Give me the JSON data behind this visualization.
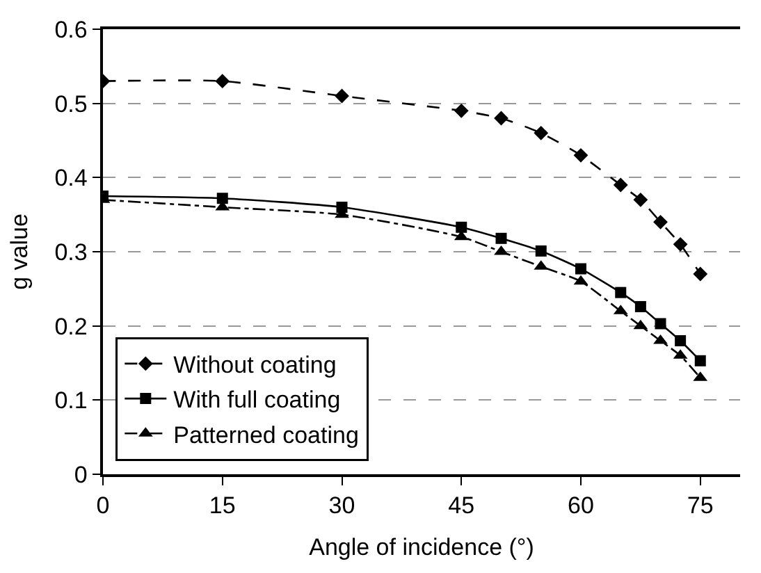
{
  "chart_data": {
    "type": "line",
    "xlabel": "Angle of incidence (°)",
    "ylabel": "g value",
    "x": [
      0,
      15,
      30,
      45,
      50,
      55,
      60,
      65,
      67.5,
      70,
      72.5,
      75
    ],
    "xlim": [
      0,
      80
    ],
    "xticks": [
      0,
      15,
      30,
      45,
      60,
      75
    ],
    "ylim": [
      0,
      0.6
    ],
    "yticks": [
      0,
      0.1,
      0.2,
      0.3,
      0.4,
      0.5,
      0.6
    ],
    "grid": "y",
    "legend": "bottom left",
    "series": [
      {
        "name": "Without coating",
        "color": "#000000",
        "marker": "diamond",
        "line_style": "dashed",
        "values": [
          0.53,
          0.53,
          0.51,
          0.49,
          0.48,
          0.46,
          0.43,
          0.39,
          0.37,
          0.34,
          0.31,
          0.27
        ]
      },
      {
        "name": "With full coating",
        "color": "#000000",
        "marker": "square",
        "line_style": "solid",
        "values": [
          0.375,
          0.372,
          0.36,
          0.333,
          0.318,
          0.301,
          0.277,
          0.245,
          0.226,
          0.203,
          0.18,
          0.153
        ]
      },
      {
        "name": "Patterned coating",
        "color": "#000000",
        "marker": "triangle",
        "line_style": "dashdot",
        "values": [
          0.37,
          0.36,
          0.35,
          0.32,
          0.3,
          0.28,
          0.26,
          0.22,
          0.2,
          0.18,
          0.16,
          0.13
        ]
      }
    ]
  }
}
